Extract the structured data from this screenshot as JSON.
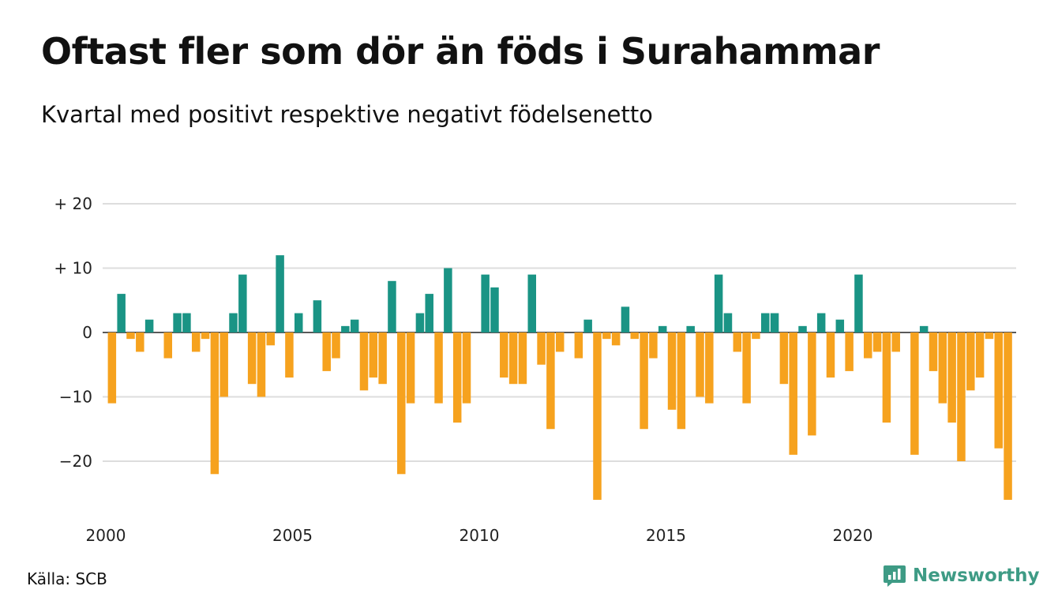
{
  "title": "Oftast fler som dör än föds i Surahammar",
  "subtitle": "Kvartal med positivt respektive negativt födelsenetto",
  "source": "Källa: SCB",
  "brand": {
    "name": "Newsworthy",
    "icon": "newsworthy-logo-icon"
  },
  "colors": {
    "positive": "#1a9485",
    "negative": "#f6a21e",
    "grid": "#dddddd",
    "zero_line": "#222222",
    "brand": "#3e9b85"
  },
  "chart_data": {
    "type": "bar",
    "title": "Oftast fler som dör än föds i Surahammar",
    "subtitle": "Kvartal med positivt respektive negativt födelsenetto",
    "xlabel": "",
    "ylabel": "",
    "ylim": [
      -28,
      22
    ],
    "grid": true,
    "y_ticks": [
      {
        "value": 20,
        "label": "+ 20"
      },
      {
        "value": 10,
        "label": "+ 10"
      },
      {
        "value": 0,
        "label": "0"
      },
      {
        "value": -10,
        "label": "−10"
      },
      {
        "value": -20,
        "label": "−20"
      }
    ],
    "x_ticks": [
      {
        "value": 2000,
        "label": "2000"
      },
      {
        "value": 2005,
        "label": "2005"
      },
      {
        "value": 2010,
        "label": "2010"
      },
      {
        "value": 2015,
        "label": "2015"
      },
      {
        "value": 2020,
        "label": "2020"
      }
    ],
    "start_year": 2000,
    "values": [
      -11,
      6,
      -1,
      -3,
      2,
      0,
      -4,
      3,
      3,
      -3,
      -1,
      -22,
      -10,
      3,
      9,
      -8,
      -10,
      -2,
      12,
      -7,
      3,
      0,
      5,
      -6,
      -4,
      1,
      2,
      -9,
      -7,
      -8,
      8,
      -22,
      -11,
      3,
      6,
      -11,
      10,
      -14,
      -11,
      0,
      9,
      7,
      -7,
      -8,
      -8,
      9,
      -5,
      -15,
      -3,
      0,
      -4,
      2,
      -26,
      -1,
      -2,
      4,
      -1,
      -15,
      -4,
      1,
      -12,
      -15,
      1,
      -10,
      -11,
      9,
      3,
      -3,
      -11,
      -1,
      3,
      3,
      -8,
      -19,
      1,
      -16,
      3,
      -7,
      2,
      -6,
      9,
      -4,
      -3,
      -14,
      -3,
      0,
      -19,
      1,
      -6,
      -11,
      -14,
      -20,
      -9,
      -7,
      -1,
      -18,
      -26
    ]
  }
}
